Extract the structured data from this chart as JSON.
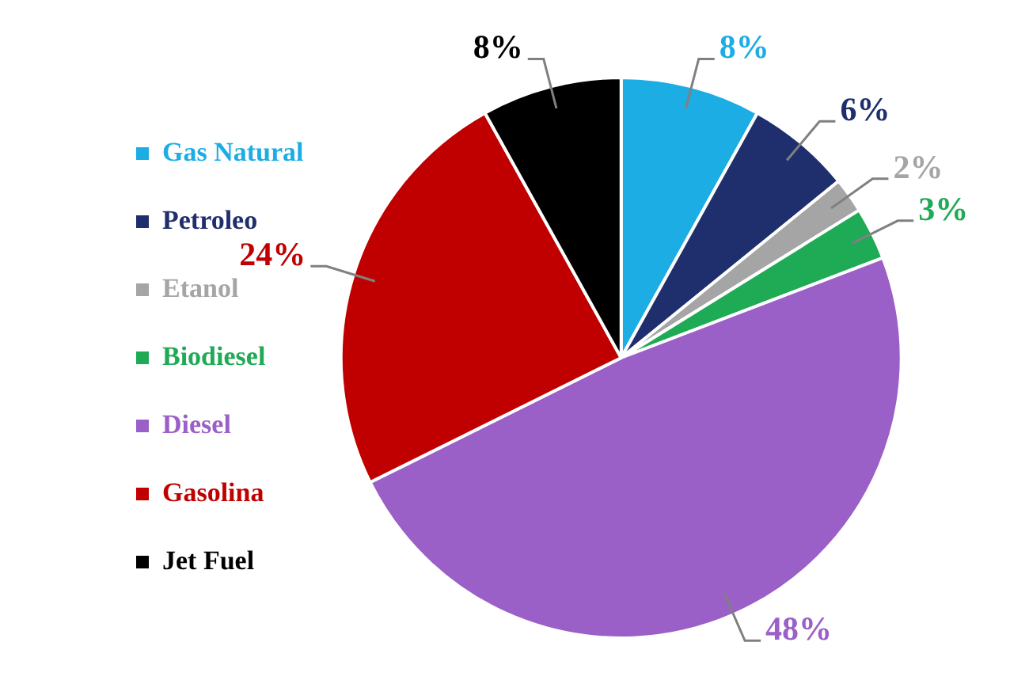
{
  "chart_data": {
    "type": "pie",
    "categories": [
      "Gas Natural",
      "Petroleo",
      "Etanol",
      "Biodiesel",
      "Diesel",
      "Gasolina",
      "Jet Fuel"
    ],
    "values": [
      8,
      6,
      2,
      3,
      48,
      24,
      8
    ],
    "colors": [
      "#1cade4",
      "#1f2f6e",
      "#a5a5a5",
      "#1faa55",
      "#9b5fc8",
      "#c00000",
      "#000000"
    ],
    "value_labels": [
      "8%",
      "6%",
      "2%",
      "3%",
      "48%",
      "24%",
      "8%"
    ],
    "legend": "left"
  }
}
